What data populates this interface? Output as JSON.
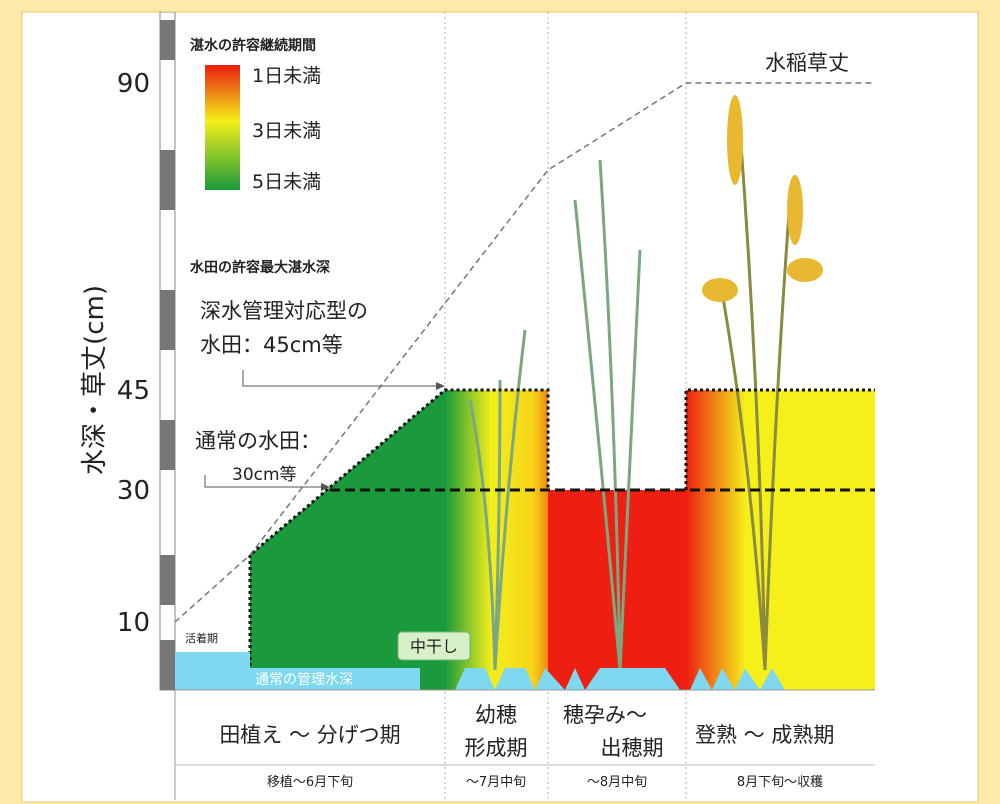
{
  "legend": {
    "title": "湛水の許容継続期間",
    "items": [
      "1日未満",
      "3日未満",
      "5日未満"
    ]
  },
  "depth_note": {
    "title": "水田の許容最大湛水深",
    "deep": [
      "深水管理対応型の",
      "水田：45cm等"
    ],
    "normal": [
      "通常の水田：",
      "30cm等"
    ]
  },
  "axis": {
    "label": "水深・草丈(cm)",
    "ticks": [
      "90",
      "45",
      "30",
      "10"
    ]
  },
  "plant_height_label": "水稲草丈",
  "labels": {
    "rooting": "活着期",
    "normal_depth": "通常の管理水深",
    "midseason_drainage": "中干し"
  },
  "stages": [
    {
      "name": [
        "田植え ～ 分げつ期"
      ],
      "period": "移植～6月下旬"
    },
    {
      "name": [
        "幼穂",
        "形成期"
      ],
      "period": "～7月中旬"
    },
    {
      "name": [
        "穂孕み～",
        "出穂期"
      ],
      "period": "～8月中旬"
    },
    {
      "name": [
        "登熟 ～ 成熟期"
      ],
      "period": "8月下旬～収穫"
    }
  ]
}
